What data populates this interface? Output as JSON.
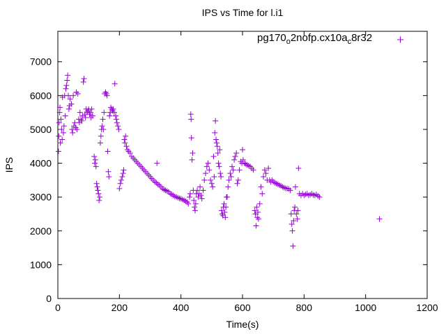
{
  "chart_data": {
    "type": "scatter",
    "title": "IPS vs Time for l.i1",
    "xlabel": "Time(s)",
    "ylabel": "IPS",
    "xlim": [
      0,
      1200
    ],
    "ylim": [
      0,
      7900
    ],
    "xticks": [
      0,
      200,
      400,
      600,
      800,
      1000,
      1200
    ],
    "yticks": [
      0,
      1000,
      2000,
      3000,
      4000,
      5000,
      6000,
      7000
    ],
    "grid": false,
    "legend_position": "top-right",
    "color": "#9400d3",
    "series": [
      {
        "name": "pg170_o2nofp.cx10a_c8r32",
        "name_parts": [
          "pg170",
          "o",
          "2nofp.cx10a",
          "c",
          "8r32"
        ],
        "points": [
          [
            2,
            4350
          ],
          [
            3,
            4800
          ],
          [
            4,
            5200
          ],
          [
            6,
            5500
          ],
          [
            7,
            5650
          ],
          [
            8,
            4600
          ],
          [
            10,
            5300
          ],
          [
            12,
            5000
          ],
          [
            14,
            4700
          ],
          [
            15,
            5950
          ],
          [
            18,
            4900
          ],
          [
            20,
            5100
          ],
          [
            22,
            6000
          ],
          [
            24,
            5400
          ],
          [
            26,
            6200
          ],
          [
            28,
            6300
          ],
          [
            30,
            6450
          ],
          [
            32,
            6600
          ],
          [
            34,
            6000
          ],
          [
            36,
            5600
          ],
          [
            38,
            5700
          ],
          [
            40,
            5900
          ],
          [
            44,
            5750
          ],
          [
            46,
            5000
          ],
          [
            48,
            4900
          ],
          [
            50,
            6000
          ],
          [
            52,
            5100
          ],
          [
            55,
            5200
          ],
          [
            58,
            5050
          ],
          [
            60,
            6100
          ],
          [
            62,
            5000
          ],
          [
            65,
            6050
          ],
          [
            68,
            5300
          ],
          [
            70,
            5200
          ],
          [
            72,
            5500
          ],
          [
            75,
            5300
          ],
          [
            78,
            5250
          ],
          [
            80,
            5400
          ],
          [
            83,
            6400
          ],
          [
            85,
            6500
          ],
          [
            88,
            5450
          ],
          [
            90,
            5350
          ],
          [
            92,
            5600
          ],
          [
            95,
            5500
          ],
          [
            98,
            5550
          ],
          [
            100,
            5600
          ],
          [
            103,
            5450
          ],
          [
            106,
            5500
          ],
          [
            108,
            5350
          ],
          [
            110,
            5600
          ],
          [
            113,
            5400
          ],
          [
            118,
            4200
          ],
          [
            120,
            4000
          ],
          [
            122,
            4100
          ],
          [
            124,
            3900
          ],
          [
            126,
            3400
          ],
          [
            128,
            3300
          ],
          [
            130,
            3200
          ],
          [
            132,
            3100
          ],
          [
            134,
            2900
          ],
          [
            136,
            3000
          ],
          [
            138,
            4600
          ],
          [
            140,
            4800
          ],
          [
            142,
            5000
          ],
          [
            144,
            5100
          ],
          [
            146,
            5300
          ],
          [
            148,
            5000
          ],
          [
            150,
            5500
          ],
          [
            152,
            6050
          ],
          [
            155,
            6100
          ],
          [
            158,
            6050
          ],
          [
            160,
            6000
          ],
          [
            162,
            4350
          ],
          [
            164,
            3750
          ],
          [
            166,
            3600
          ],
          [
            168,
            5400
          ],
          [
            170,
            5500
          ],
          [
            172,
            5650
          ],
          [
            175,
            5600
          ],
          [
            178,
            5550
          ],
          [
            180,
            5600
          ],
          [
            183,
            5500
          ],
          [
            185,
            6350
          ],
          [
            188,
            5400
          ],
          [
            190,
            5300
          ],
          [
            192,
            5200
          ],
          [
            195,
            5100
          ],
          [
            198,
            5000
          ],
          [
            200,
            3250
          ],
          [
            203,
            3400
          ],
          [
            206,
            3500
          ],
          [
            209,
            3600
          ],
          [
            212,
            3700
          ],
          [
            214,
            3800
          ],
          [
            216,
            4700
          ],
          [
            218,
            4600
          ],
          [
            220,
            4800
          ],
          [
            223,
            4500
          ],
          [
            226,
            4400
          ],
          [
            230,
            4350
          ],
          [
            235,
            4300
          ],
          [
            240,
            4200
          ],
          [
            245,
            4150
          ],
          [
            250,
            4100
          ],
          [
            255,
            4050
          ],
          [
            260,
            4000
          ],
          [
            265,
            3950
          ],
          [
            270,
            3900
          ],
          [
            275,
            3850
          ],
          [
            280,
            3800
          ],
          [
            285,
            3750
          ],
          [
            290,
            3700
          ],
          [
            295,
            3650
          ],
          [
            300,
            3600
          ],
          [
            305,
            3550
          ],
          [
            310,
            3500
          ],
          [
            315,
            3450
          ],
          [
            320,
            3420
          ],
          [
            322,
            4000
          ],
          [
            325,
            3380
          ],
          [
            330,
            3350
          ],
          [
            335,
            3300
          ],
          [
            340,
            3250
          ],
          [
            345,
            3220
          ],
          [
            350,
            3200
          ],
          [
            355,
            3180
          ],
          [
            360,
            3150
          ],
          [
            365,
            3100
          ],
          [
            370,
            3080
          ],
          [
            375,
            3050
          ],
          [
            380,
            3020
          ],
          [
            385,
            3000
          ],
          [
            390,
            2980
          ],
          [
            395,
            2960
          ],
          [
            400,
            2950
          ],
          [
            405,
            2930
          ],
          [
            410,
            2900
          ],
          [
            415,
            2880
          ],
          [
            420,
            2850
          ],
          [
            424,
            2800
          ],
          [
            428,
            3000
          ],
          [
            430,
            3100
          ],
          [
            432,
            5450
          ],
          [
            433,
            5300
          ],
          [
            434,
            4750
          ],
          [
            436,
            4100
          ],
          [
            438,
            4300
          ],
          [
            440,
            3200
          ],
          [
            442,
            2900
          ],
          [
            444,
            2700
          ],
          [
            446,
            2600
          ],
          [
            448,
            2800
          ],
          [
            450,
            3100
          ],
          [
            453,
            3200
          ],
          [
            456,
            3000
          ],
          [
            459,
            3100
          ],
          [
            462,
            3300
          ],
          [
            465,
            3050
          ],
          [
            468,
            2950
          ],
          [
            472,
            3200
          ],
          [
            476,
            3500
          ],
          [
            480,
            3700
          ],
          [
            484,
            3900
          ],
          [
            488,
            4000
          ],
          [
            492,
            3800
          ],
          [
            496,
            3500
          ],
          [
            500,
            3400
          ],
          [
            503,
            3300
          ],
          [
            506,
            4200
          ],
          [
            508,
            3600
          ],
          [
            510,
            4900
          ],
          [
            512,
            5250
          ],
          [
            514,
            4700
          ],
          [
            516,
            4600
          ],
          [
            518,
            4500
          ],
          [
            520,
            4300
          ],
          [
            522,
            4000
          ],
          [
            524,
            3900
          ],
          [
            526,
            4400
          ],
          [
            528,
            3700
          ],
          [
            530,
            3600
          ],
          [
            532,
            2600
          ],
          [
            534,
            2500
          ],
          [
            536,
            2450
          ],
          [
            538,
            2700
          ],
          [
            540,
            2800
          ],
          [
            542,
            2550
          ],
          [
            544,
            2400
          ],
          [
            546,
            2700
          ],
          [
            548,
            3000
          ],
          [
            550,
            3000
          ],
          [
            553,
            3300
          ],
          [
            556,
            3500
          ],
          [
            560,
            3700
          ],
          [
            563,
            3600
          ],
          [
            566,
            3900
          ],
          [
            570,
            3800
          ],
          [
            573,
            4100
          ],
          [
            576,
            4200
          ],
          [
            580,
            4300
          ],
          [
            583,
            3400
          ],
          [
            586,
            3500
          ],
          [
            590,
            3800
          ],
          [
            594,
            4050
          ],
          [
            598,
            4000
          ],
          [
            600,
            4400
          ],
          [
            602,
            4100
          ],
          [
            606,
            4000
          ],
          [
            610,
            3980
          ],
          [
            615,
            3950
          ],
          [
            620,
            3930
          ],
          [
            625,
            3900
          ],
          [
            630,
            3850
          ],
          [
            635,
            3800
          ],
          [
            640,
            2600
          ],
          [
            642,
            2500
          ],
          [
            644,
            2150
          ],
          [
            646,
            2700
          ],
          [
            648,
            2400
          ],
          [
            650,
            2550
          ],
          [
            652,
            2350
          ],
          [
            656,
            2800
          ],
          [
            660,
            3300
          ],
          [
            664,
            3100
          ],
          [
            668,
            3600
          ],
          [
            672,
            3800
          ],
          [
            676,
            3700
          ],
          [
            680,
            3500
          ],
          [
            684,
            3850
          ],
          [
            688,
            3500
          ],
          [
            692,
            3450
          ],
          [
            696,
            3500
          ],
          [
            700,
            3450
          ],
          [
            705,
            3420
          ],
          [
            710,
            3400
          ],
          [
            715,
            3380
          ],
          [
            720,
            3350
          ],
          [
            725,
            3330
          ],
          [
            730,
            3300
          ],
          [
            735,
            3280
          ],
          [
            740,
            3260
          ],
          [
            745,
            3250
          ],
          [
            750,
            3240
          ],
          [
            755,
            3200
          ],
          [
            758,
            2500
          ],
          [
            760,
            2200
          ],
          [
            762,
            2000
          ],
          [
            764,
            1550
          ],
          [
            766,
            2300
          ],
          [
            768,
            2600
          ],
          [
            770,
            2700
          ],
          [
            772,
            3300
          ],
          [
            775,
            2500
          ],
          [
            778,
            2350
          ],
          [
            780,
            2600
          ],
          [
            782,
            3850
          ],
          [
            785,
            3100
          ],
          [
            790,
            3050
          ],
          [
            795,
            3100
          ],
          [
            800,
            3050
          ],
          [
            805,
            3080
          ],
          [
            810,
            3100
          ],
          [
            815,
            3050
          ],
          [
            820,
            3070
          ],
          [
            825,
            3100
          ],
          [
            830,
            3060
          ],
          [
            835,
            3050
          ],
          [
            840,
            3080
          ],
          [
            845,
            3030
          ],
          [
            850,
            3000
          ],
          [
            1045,
            2350
          ]
        ]
      }
    ]
  }
}
